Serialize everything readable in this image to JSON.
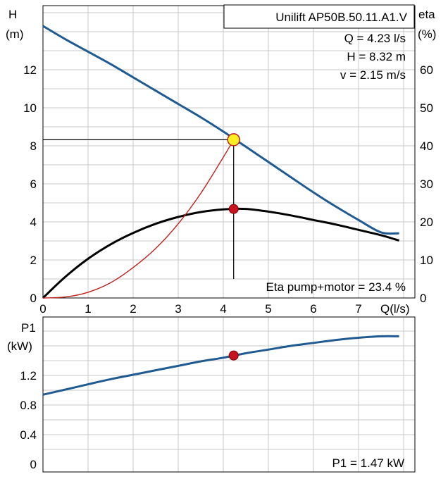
{
  "chart_data": [
    {
      "type": "line",
      "title": "Unilift AP50B.50.11.A1.V",
      "x_axis": {
        "label": "Q(l/s)",
        "min": 0,
        "max": 8,
        "ticks": [
          "0",
          "1",
          "2",
          "3",
          "4",
          "5",
          "6",
          "7"
        ]
      },
      "y_axis_left": {
        "label_line1": "H",
        "label_line2": "(m)",
        "min": 0,
        "max": 16,
        "ticks": [
          "0",
          "2",
          "4",
          "6",
          "8",
          "10",
          "12"
        ]
      },
      "y_axis_right": {
        "label_line1": "eta",
        "label_line2": "(%)",
        "min": 0,
        "max": 80,
        "ticks": [
          "0",
          "10",
          "20",
          "30",
          "40",
          "50",
          "60"
        ]
      },
      "grid": true,
      "info_lines": [
        "Q = 4.23 l/s",
        "H = 8.32 m",
        "v = 2.15 m/s"
      ],
      "eta_label": "Eta pump+motor = 23.4 %",
      "operating_point": {
        "q": 4.23,
        "h": 8.32,
        "eta": 23.4
      },
      "colors": {
        "head": "#1f5a91",
        "eta": "#000000",
        "system": "#c0201a",
        "duty_point": "#ffee22",
        "eta_point": "#c8141e"
      },
      "series": [
        {
          "role": "head_curve",
          "axis": "left",
          "x": [
            0,
            0.5,
            1,
            1.5,
            2,
            2.5,
            3,
            3.5,
            4,
            4.5,
            5,
            5.5,
            6,
            6.5,
            7,
            7.5,
            7.9
          ],
          "y": [
            14.3,
            13.6,
            12.95,
            12.3,
            11.6,
            10.9,
            10.2,
            9.5,
            8.75,
            7.95,
            7.15,
            6.35,
            5.55,
            4.8,
            4.1,
            3.45,
            3.4
          ]
        },
        {
          "role": "eta_curve",
          "axis": "right",
          "x": [
            0,
            0.5,
            1,
            1.5,
            2,
            2.5,
            3,
            3.5,
            4,
            4.5,
            5,
            5.5,
            6,
            6.5,
            7,
            7.5,
            7.9
          ],
          "y": [
            0,
            5.6,
            10.3,
            14.1,
            17.1,
            19.5,
            21.3,
            22.6,
            23.3,
            23.4,
            22.7,
            21.7,
            20.5,
            19.3,
            17.9,
            16.5,
            15.1
          ]
        },
        {
          "role": "system_curve",
          "axis": "left",
          "x": [
            0,
            0.5,
            1,
            1.5,
            2,
            2.5,
            3,
            3.5,
            4,
            4.23
          ],
          "y": [
            0,
            0.05,
            0.3,
            0.8,
            1.6,
            2.6,
            3.9,
            5.5,
            7.4,
            8.32
          ]
        }
      ]
    },
    {
      "type": "line",
      "x_axis": {
        "min": 0,
        "max": 8
      },
      "y_axis": {
        "label_line1": "P1",
        "label_line2": "(kW)",
        "min": 0,
        "max": 2,
        "ticks": [
          "0",
          "0.4",
          "0.8",
          "1.2"
        ]
      },
      "grid": true,
      "p1_label": "P1 = 1.47 kW",
      "operating_point": {
        "q": 4.23,
        "p1": 1.47
      },
      "colors": {
        "power": "#1f5a91",
        "point": "#c8141e"
      },
      "series": [
        {
          "role": "power_curve",
          "x": [
            0,
            0.5,
            1,
            1.5,
            2,
            2.5,
            3,
            3.5,
            4,
            4.5,
            5,
            5.5,
            6,
            6.5,
            7,
            7.5,
            7.9
          ],
          "y": [
            0.94,
            1.01,
            1.08,
            1.15,
            1.21,
            1.27,
            1.33,
            1.39,
            1.44,
            1.5,
            1.55,
            1.6,
            1.64,
            1.68,
            1.71,
            1.73,
            1.73
          ]
        }
      ]
    }
  ]
}
